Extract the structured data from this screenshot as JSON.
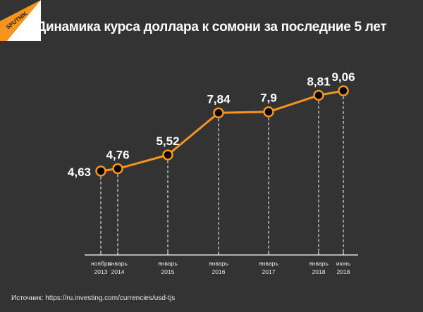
{
  "chart_data": {
    "type": "line",
    "title": "Динамика курса доллара к сомони за последние 5 лет",
    "categories": [
      {
        "month": "ноябрь",
        "year": "2013"
      },
      {
        "month": "январь",
        "year": "2014"
      },
      {
        "month": "январь",
        "year": "2015"
      },
      {
        "month": "январь",
        "year": "2016"
      },
      {
        "month": "январь",
        "year": "2017"
      },
      {
        "month": "январь",
        "year": "2018"
      },
      {
        "month": "июнь",
        "year": "2018"
      }
    ],
    "x_dates": [
      "2013-11",
      "2014-01",
      "2015-01",
      "2016-01",
      "2017-01",
      "2018-01",
      "2018-06"
    ],
    "values": [
      4.63,
      4.76,
      5.52,
      7.84,
      7.9,
      8.81,
      9.06
    ],
    "data_labels": [
      "4,63",
      "4,76",
      "5,52",
      "7,84",
      "7,9",
      "8,81",
      "9,06"
    ],
    "ylim": [
      0,
      10
    ],
    "grid": false,
    "line_color": "#f7941d",
    "marker_fill": "#000000"
  },
  "source": "Источник: https://ru.investing.com/currencies/usd-tjs",
  "logo_text": "SPUTNIK",
  "colors": {
    "background": "#333333",
    "text": "#ffffff",
    "accent": "#f7941d"
  }
}
